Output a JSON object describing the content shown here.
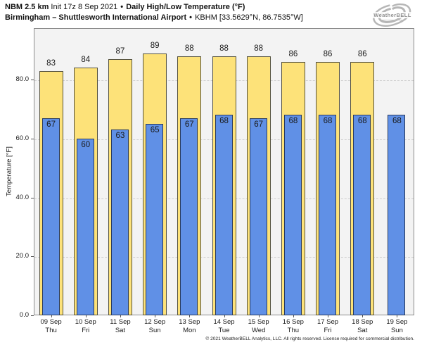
{
  "header": {
    "model": "NBM 2.5 km",
    "init": "Init 17z 8 Sep 2021",
    "sep1": "•",
    "product": "Daily High/Low Temperature (°F)",
    "station_name": "Birmingham – Shuttlesworth International Airport",
    "sep2": "•",
    "station_id": "KBHM [33.5629°N, 86.7535°W]"
  },
  "logo": {
    "brand": "WeatherBELL"
  },
  "chart_data": {
    "type": "bar",
    "title": "Daily High/Low Temperature (°F)",
    "xlabel": "",
    "ylabel": "Temperature [°F]",
    "ylim": [
      0,
      97.5
    ],
    "yticks": [
      0,
      20,
      40,
      60,
      80
    ],
    "ytick_labels": [
      "0.0",
      "20.0",
      "40.0",
      "60.0",
      "80.0"
    ],
    "grid": "horizontal-dashed",
    "legend_position": "none",
    "x_dates": [
      "09 Sep",
      "10 Sep",
      "11 Sep",
      "12 Sep",
      "13 Sep",
      "14 Sep",
      "15 Sep",
      "16 Sep",
      "17 Sep",
      "18 Sep",
      "19 Sep"
    ],
    "x_days": [
      "Thu",
      "Fri",
      "Sat",
      "Sun",
      "Mon",
      "Tue",
      "Wed",
      "Thu",
      "Fri",
      "Sat",
      "Sun"
    ],
    "series": [
      {
        "name": "High",
        "values": [
          83,
          84,
          87,
          89,
          88,
          88,
          88,
          86,
          86,
          86,
          null
        ]
      },
      {
        "name": "Low",
        "values": [
          67,
          60,
          63,
          65,
          67,
          68,
          67,
          68,
          68,
          68,
          68
        ]
      }
    ]
  },
  "footer": {
    "copyright": "© 2021 WeatherBELL Analytics, LLC. All rights reserved. License required for commercial distribution."
  },
  "colors": {
    "high_fill": "#FDE279",
    "high_edge": "#55523F",
    "low_fill": "#6090E6",
    "low_edge": "#283A5E",
    "plot_bg": "#F3F3F3",
    "grid": "#CFCFCF",
    "axis_box": "#8C8C8C",
    "text": "#1A1A1A"
  }
}
